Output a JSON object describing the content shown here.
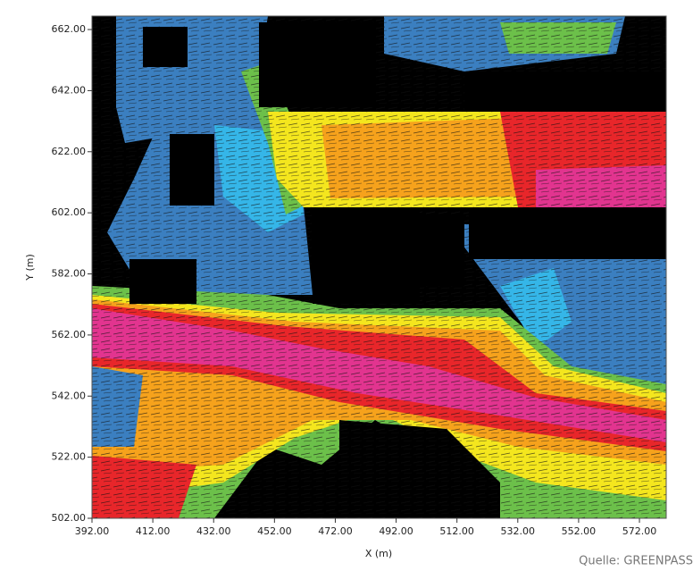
{
  "chart_data": {
    "type": "flowmap",
    "x_label": "X (m)",
    "y_label": "Y (m)",
    "source": "Quelle: GREENPASS",
    "xlim": [
      392,
      580.8
    ],
    "ylim": [
      502,
      666.4
    ],
    "xticks": [
      {
        "value": 392,
        "label": "392.00"
      },
      {
        "value": 412,
        "label": "412.00"
      },
      {
        "value": 432,
        "label": "432.00"
      },
      {
        "value": 452,
        "label": "452.00"
      },
      {
        "value": 472,
        "label": "472.00"
      },
      {
        "value": 492,
        "label": "492.00"
      },
      {
        "value": 512,
        "label": "512.00"
      },
      {
        "value": 532,
        "label": "532.00"
      },
      {
        "value": 552,
        "label": "552.00"
      },
      {
        "value": 572,
        "label": "572.00"
      }
    ],
    "yticks": [
      {
        "value": 502,
        "label": "502.00"
      },
      {
        "value": 522,
        "label": "522.00"
      },
      {
        "value": 542,
        "label": "542.00"
      },
      {
        "value": 562,
        "label": "562.00"
      },
      {
        "value": 582,
        "label": "582.00"
      },
      {
        "value": 602,
        "label": "602.00"
      },
      {
        "value": 622,
        "label": "622.00"
      },
      {
        "value": 642,
        "label": "642.00"
      },
      {
        "value": 662,
        "label": "662.00"
      }
    ]
  }
}
